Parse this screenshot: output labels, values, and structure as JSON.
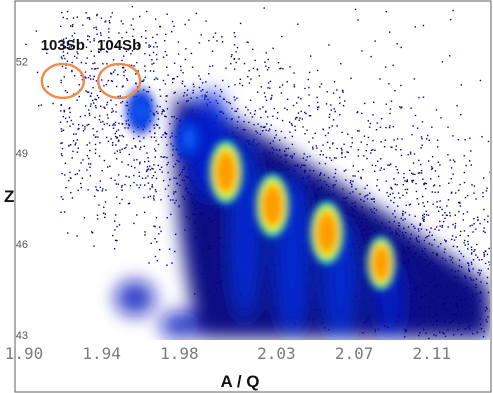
{
  "chart_data": {
    "type": "heatmap",
    "title": "",
    "xlabel": "A / Q",
    "ylabel": "Z",
    "xlim": [
      1.9,
      2.14
    ],
    "ylim": [
      43,
      54
    ],
    "x_ticks": [
      "1.90",
      "1.94",
      "1.98",
      "2.03",
      "2.07",
      "2.11"
    ],
    "x_tick_values": [
      1.9,
      1.94,
      1.98,
      2.03,
      2.07,
      2.11
    ],
    "y_ticks": [
      "43",
      "46",
      "49",
      "52"
    ],
    "y_tick_values": [
      43,
      46,
      49,
      52
    ],
    "grid": false,
    "legend": "none",
    "colormap": [
      "#000088",
      "#0000cc",
      "#1144ff",
      "#00aaff",
      "#00ff88",
      "#ffff00",
      "#ff9900"
    ],
    "hot_spots": [
      {
        "x": 2.004,
        "y": 48.4,
        "intensity": 1.0
      },
      {
        "x": 2.028,
        "y": 47.3,
        "intensity": 1.0
      },
      {
        "x": 2.056,
        "y": 46.4,
        "intensity": 1.0
      },
      {
        "x": 2.084,
        "y": 45.4,
        "intensity": 0.85
      },
      {
        "x": 1.985,
        "y": 49.5,
        "intensity": 0.5
      },
      {
        "x": 1.96,
        "y": 50.4,
        "intensity": 0.3
      }
    ],
    "annotations": [
      {
        "text": "103Sb",
        "x": 1.92,
        "y": 51.4,
        "circle_color": "#f08a4b"
      },
      {
        "text": "104Sb",
        "x": 1.949,
        "y": 51.4,
        "circle_color": "#f08a4b"
      }
    ]
  }
}
